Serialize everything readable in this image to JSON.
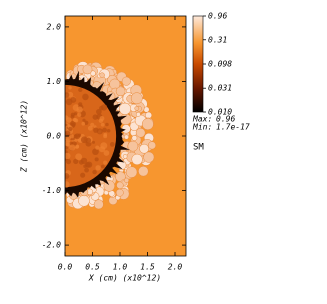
{
  "chart_data": {
    "type": "heatmap",
    "xlabel": "X (cm) (x10^12)",
    "ylabel": "Z (cm) (x10^12)",
    "xlim": [
      0,
      2.2
    ],
    "ylim": [
      -2.2,
      2.2
    ],
    "xticks": [
      {
        "value": 0,
        "label": "0.0"
      },
      0.5,
      {
        "value": 1,
        "label": "1.0"
      },
      1.5,
      {
        "value": 2,
        "label": "2.0"
      }
    ],
    "yticks": [
      {
        "value": -2,
        "label": "-2.0"
      },
      {
        "value": -1,
        "label": "-1.0"
      },
      {
        "value": 0,
        "label": "0.0"
      },
      {
        "value": 1,
        "label": "1.0"
      },
      {
        "value": 2,
        "label": "2.0"
      }
    ],
    "colorbar": {
      "lim": [
        0.01,
        0.96
      ],
      "log": true,
      "ticks": [
        0.96,
        0.31,
        0.098,
        0.031,
        {
          "value": 0.01,
          "label": "0.010"
        }
      ]
    },
    "annotations": [
      {
        "label": "Max:",
        "value": 0.96
      },
      {
        "label": "Min:",
        "value": 1.7e-17
      }
    ],
    "variable": "SM"
  }
}
